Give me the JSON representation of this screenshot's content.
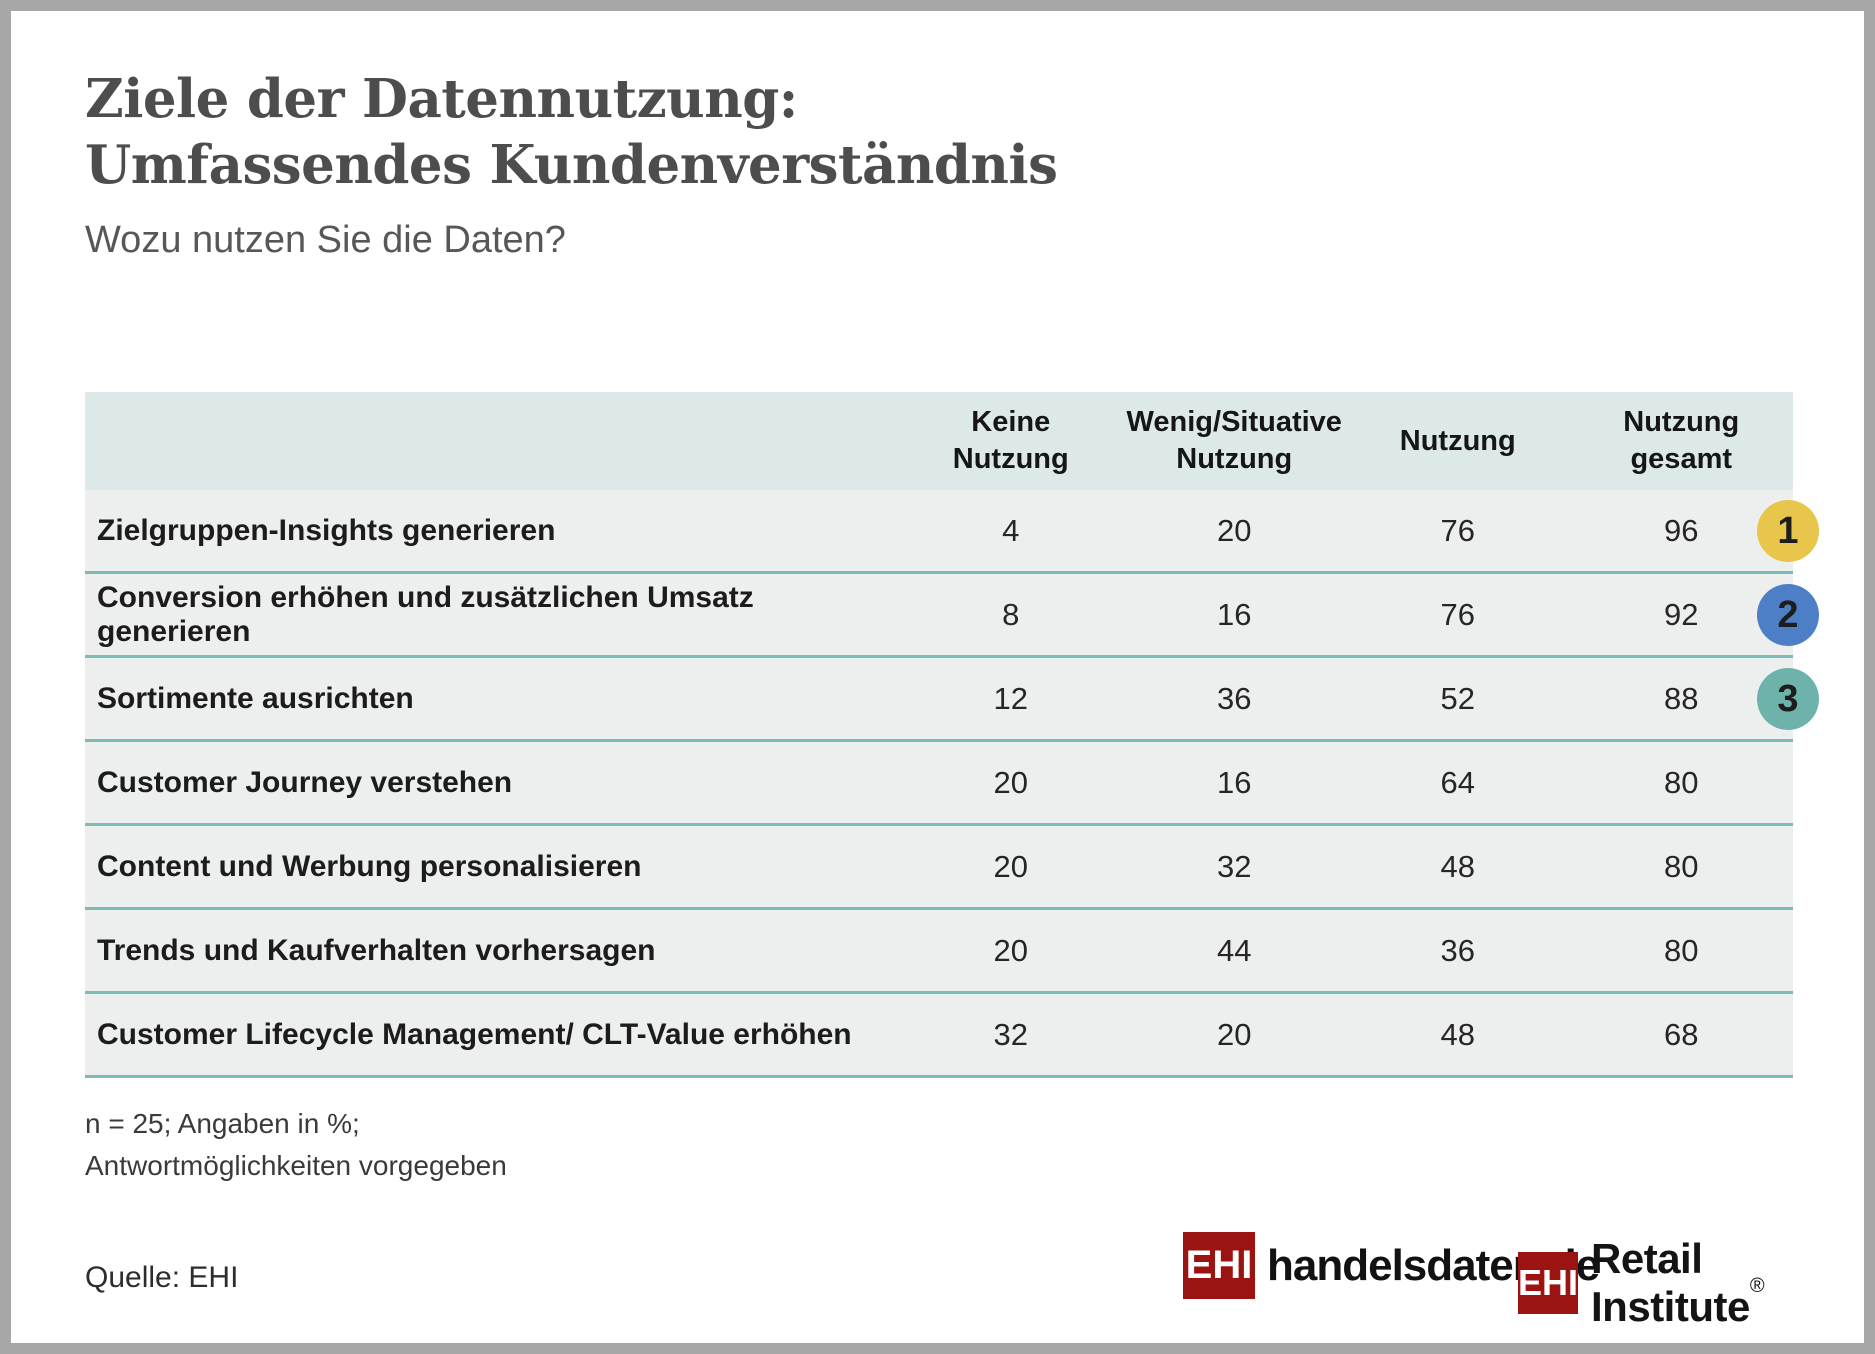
{
  "header": {
    "title_line1": "Ziele der Datennutzung:",
    "title_line2": "Umfassendes Kundenverständnis",
    "subtitle": "Wozu nutzen Sie die Daten?"
  },
  "table": {
    "columns": [
      {
        "label": "Keine Nutzung",
        "lines": "Keine\nNutzung"
      },
      {
        "label": "Wenig/Situative Nutzung",
        "lines": "Wenig/Situative\nNutzung"
      },
      {
        "label": "Nutzung",
        "lines": "Nutzung"
      },
      {
        "label": "Nutzung gesamt",
        "lines": "Nutzung\ngesamt"
      }
    ],
    "rows": [
      {
        "label": "Zielgruppen-Insights generieren",
        "values": [
          4,
          20,
          76,
          96
        ],
        "rank": 1,
        "rank_color": "#e8c64b"
      },
      {
        "label": "Conversion erhöhen und zusätzlichen Umsatz generieren",
        "values": [
          8,
          16,
          76,
          92
        ],
        "rank": 2,
        "rank_color": "#4c7fc6"
      },
      {
        "label": "Sortimente ausrichten",
        "values": [
          12,
          36,
          52,
          88
        ],
        "rank": 3,
        "rank_color": "#6db3ac"
      },
      {
        "label": "Customer Journey verstehen",
        "values": [
          20,
          16,
          64,
          80
        ]
      },
      {
        "label": "Content und Werbung personalisieren",
        "values": [
          20,
          32,
          48,
          80
        ]
      },
      {
        "label": "Trends und Kaufverhalten vorhersagen",
        "values": [
          20,
          44,
          36,
          80
        ]
      },
      {
        "label": "Customer Lifecycle Management/ CLT-Value erhöhen",
        "values": [
          32,
          20,
          48,
          68
        ]
      }
    ]
  },
  "chart_data": {
    "type": "table",
    "title": "Ziele der Datennutzung: Umfassendes Kundenverständnis",
    "subtitle": "Wozu nutzen Sie die Daten?",
    "categories": [
      "Zielgruppen-Insights generieren",
      "Conversion erhöhen und zusätzlichen Umsatz generieren",
      "Sortimente ausrichten",
      "Customer Journey verstehen",
      "Content und Werbung personalisieren",
      "Trends und Kaufverhalten vorhersagen",
      "Customer Lifecycle Management/ CLT-Value erhöhen"
    ],
    "series": [
      {
        "name": "Keine Nutzung",
        "values": [
          4,
          8,
          12,
          20,
          20,
          20,
          32
        ]
      },
      {
        "name": "Wenig/Situative Nutzung",
        "values": [
          20,
          16,
          36,
          16,
          32,
          44,
          20
        ]
      },
      {
        "name": "Nutzung",
        "values": [
          76,
          76,
          52,
          64,
          48,
          36,
          48
        ]
      },
      {
        "name": "Nutzung gesamt",
        "values": [
          96,
          92,
          88,
          80,
          80,
          80,
          68
        ]
      }
    ],
    "ranked_top3": [
      1,
      2,
      3
    ],
    "unit": "%",
    "n": 25,
    "note": "n = 25; Angaben in %; Antwortmöglichkeiten vorgegeben",
    "source": "EHI"
  },
  "footnote": {
    "line1": "n = 25; Angaben in %;",
    "line2": "Antwortmöglichkeiten vorgegeben"
  },
  "source": {
    "label": "Quelle: EHI"
  },
  "logos": {
    "handelsdaten": {
      "ehi": "EHI",
      "name": "handelsdaten",
      "dot": ".",
      "tld": "de"
    },
    "retail": {
      "ehi": "EHI",
      "name": "Retail Institute",
      "reg": "®"
    }
  },
  "colors": {
    "header_bg": "#dce9e8",
    "row_bg": "#edefee",
    "divider": "#7cbcb6",
    "badge_1": "#e8c64b",
    "badge_2": "#4c7fc6",
    "badge_3": "#6db3ac",
    "logo_red": "#9c1411",
    "frame": "#a7a7a7"
  }
}
